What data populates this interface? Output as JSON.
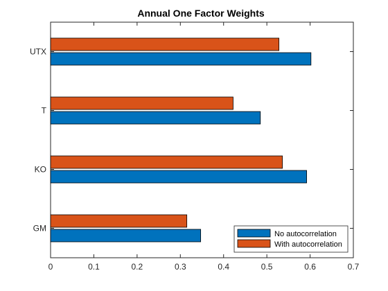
{
  "chart_data": {
    "type": "bar",
    "orientation": "horizontal",
    "title": "Annual One Factor Weights",
    "xlabel": "",
    "ylabel": "",
    "categories": [
      "GM",
      "KO",
      "T",
      "UTX"
    ],
    "series": [
      {
        "name": "No autocorrelation",
        "values": [
          0.347,
          0.592,
          0.485,
          0.602
        ],
        "color": "#0072BD"
      },
      {
        "name": "With autocorrelation",
        "values": [
          0.315,
          0.536,
          0.422,
          0.528
        ],
        "color": "#D95319"
      }
    ],
    "xlim": [
      0,
      0.7
    ],
    "xticks": [
      "0",
      "0.1",
      "0.2",
      "0.3",
      "0.4",
      "0.5",
      "0.6",
      "0.7"
    ],
    "grid": false,
    "legend_position": "bottom-right"
  }
}
